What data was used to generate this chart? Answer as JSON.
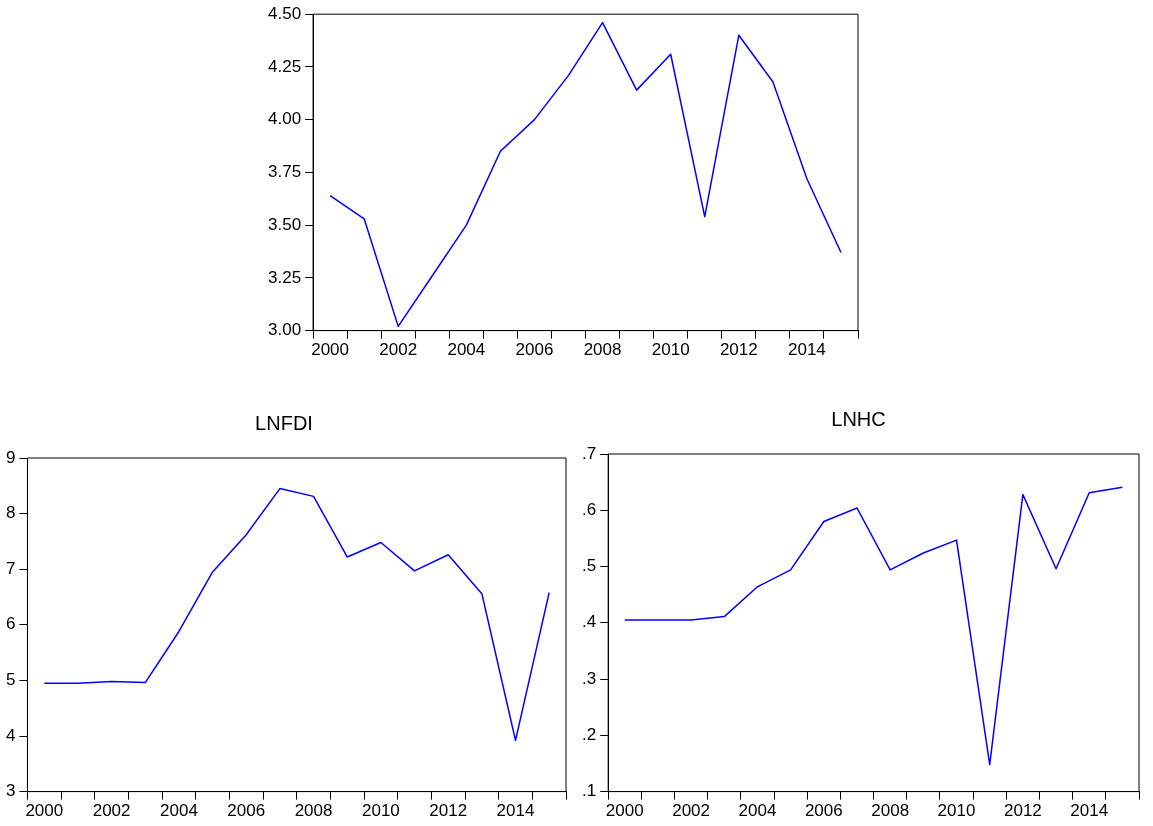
{
  "chart_data": [
    {
      "type": "line",
      "categories": [
        "2000",
        null,
        "2002",
        null,
        "2004",
        null,
        "2006",
        null,
        "2008",
        null,
        "2010",
        null,
        "2012",
        null,
        "2014",
        null
      ],
      "series": [
        {
          "color": "#0000ff",
          "values": [
            3.64,
            3.53,
            3.02,
            3.26,
            3.5,
            3.85,
            4.0,
            4.21,
            4.46,
            4.14,
            4.31,
            3.54,
            4.4,
            4.18,
            3.72,
            3.37
          ]
        }
      ],
      "ylim": [
        3,
        4.5
      ],
      "yticks": [
        {
          "value": 3,
          "label": "3.00"
        },
        {
          "value": 3.25,
          "label": "3.25"
        },
        {
          "value": 3.5,
          "label": "3.50"
        },
        {
          "value": 3.75,
          "label": "3.75"
        },
        {
          "value": 4,
          "label": "4.00"
        },
        {
          "value": 4.25,
          "label": "4.25"
        },
        {
          "value": 4.5,
          "label": "4.50"
        }
      ],
      "legend": false,
      "marker": "none",
      "line_style": "solid"
    },
    {
      "type": "line",
      "title": "LNFDI",
      "categories": [
        "2000",
        null,
        "2002",
        null,
        "2004",
        null,
        "2006",
        null,
        "2008",
        null,
        "2010",
        null,
        "2012",
        null,
        "2014",
        null
      ],
      "series": [
        {
          "color": "#0000ff",
          "values": [
            4.95,
            4.95,
            4.98,
            4.96,
            5.88,
            6.95,
            7.62,
            8.45,
            8.31,
            7.22,
            7.48,
            6.97,
            7.26,
            6.56,
            3.92,
            6.58
          ]
        }
      ],
      "ylim": [
        3,
        9
      ],
      "yticks": [
        3,
        4,
        5,
        6,
        7,
        8,
        9
      ],
      "legend": false,
      "marker": "none",
      "line_style": "solid"
    },
    {
      "type": "line",
      "title": "LNHC",
      "categories": [
        "2000",
        null,
        "2002",
        null,
        "2004",
        null,
        "2006",
        null,
        "2008",
        null,
        "2010",
        null,
        "2012",
        null,
        "2014",
        null
      ],
      "series": [
        {
          "color": "#0000ff",
          "values": [
            0.405,
            0.405,
            0.405,
            0.411,
            0.464,
            0.494,
            0.58,
            0.604,
            0.494,
            0.524,
            0.547,
            0.148,
            0.628,
            0.496,
            0.631,
            0.641
          ]
        }
      ],
      "ylim": [
        0.1,
        0.7
      ],
      "yticks": [
        {
          "value": 0.1,
          "label": ".1"
        },
        {
          "value": 0.2,
          "label": ".2"
        },
        {
          "value": 0.3,
          "label": ".3"
        },
        {
          "value": 0.4,
          "label": ".4"
        },
        {
          "value": 0.5,
          "label": ".5"
        },
        {
          "value": 0.6,
          "label": ".6"
        },
        {
          "value": 0.7,
          "label": ".7"
        }
      ],
      "legend": false,
      "marker": "none",
      "line_style": "solid"
    }
  ]
}
